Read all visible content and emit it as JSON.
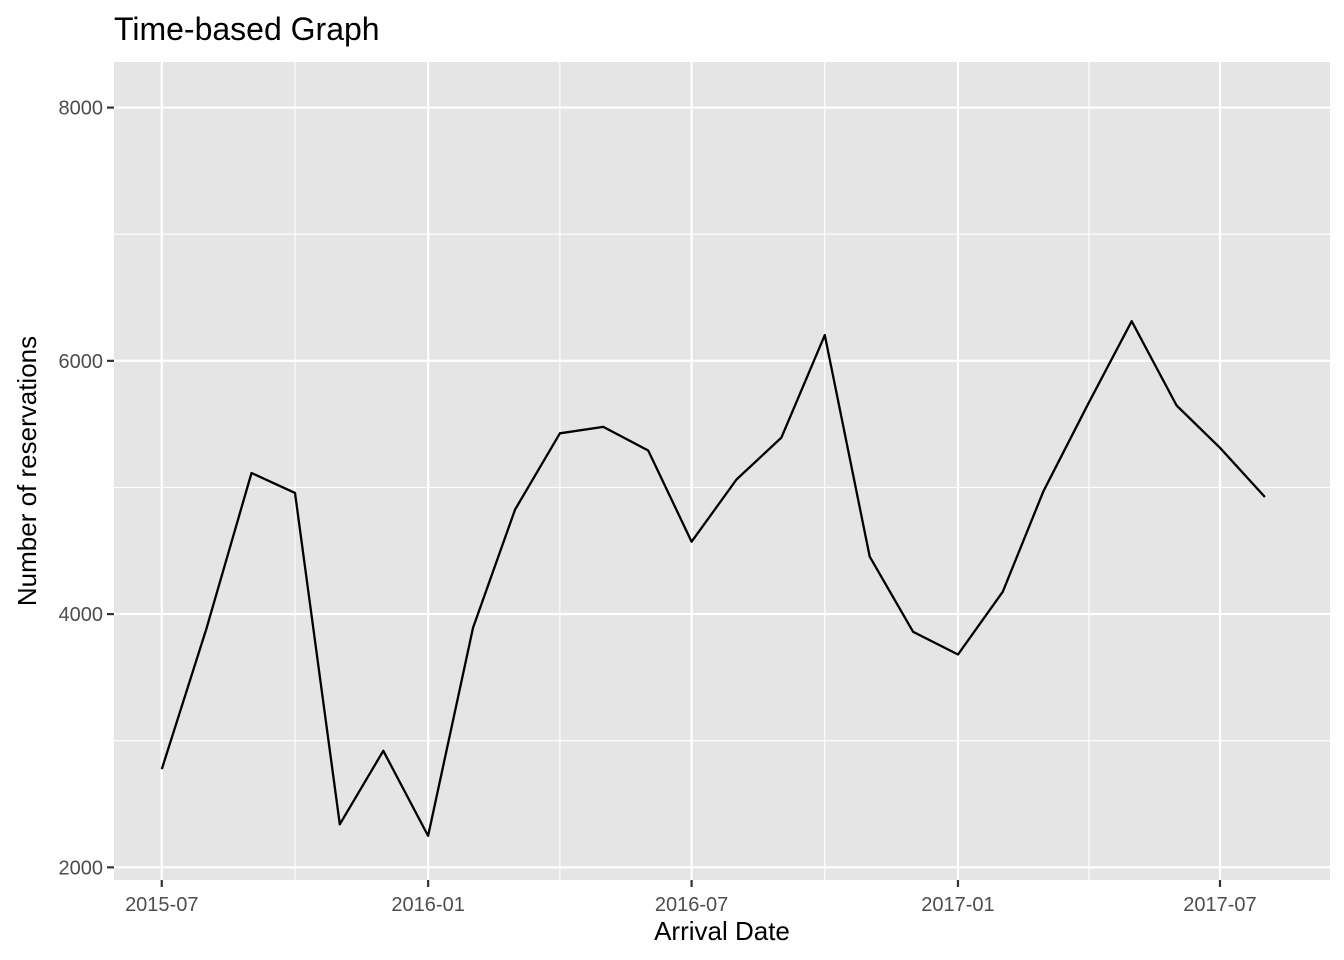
{
  "chart_data": {
    "type": "line",
    "title": "Time-based Graph",
    "xlabel": "Arrival Date",
    "ylabel": "Number of reservations",
    "x_ticks": [
      "2015-07",
      "2016-01",
      "2016-07",
      "2017-01",
      "2017-07"
    ],
    "y_ticks": [
      2000,
      4000,
      6000,
      8000
    ],
    "xlim": [
      "2015-05-29",
      "2017-09-15"
    ],
    "ylim": [
      1900,
      8360
    ],
    "grid": true,
    "colors": {
      "panel_background": "#e5e5e5",
      "grid_line": "#ffffff",
      "series_line": "#000000",
      "tick_label": "#4d4d4d",
      "tick_mark": "#333333"
    },
    "series": [
      {
        "x": [
          "2015-07-01",
          "2015-08-01",
          "2015-09-01",
          "2015-10-01",
          "2015-11-01",
          "2015-12-01",
          "2016-01-01",
          "2016-02-01",
          "2016-03-01",
          "2016-04-01",
          "2016-05-01",
          "2016-06-01",
          "2016-07-01",
          "2016-08-01",
          "2016-09-01",
          "2016-10-01",
          "2016-11-01",
          "2016-12-01",
          "2017-01-01",
          "2017-02-01",
          "2017-03-01",
          "2017-04-01",
          "2017-05-01",
          "2017-06-01",
          "2017-07-01",
          "2017-08-01"
        ],
        "values": [
          2776,
          3889,
          5114,
          4957,
          2340,
          2920,
          2248,
          3891,
          4824,
          5428,
          5478,
          5292,
          4572,
          5063,
          5394,
          6203,
          4454,
          3860,
          3681,
          4177,
          4970,
          5661,
          6313,
          5647,
          5313,
          4925
        ]
      }
    ]
  }
}
